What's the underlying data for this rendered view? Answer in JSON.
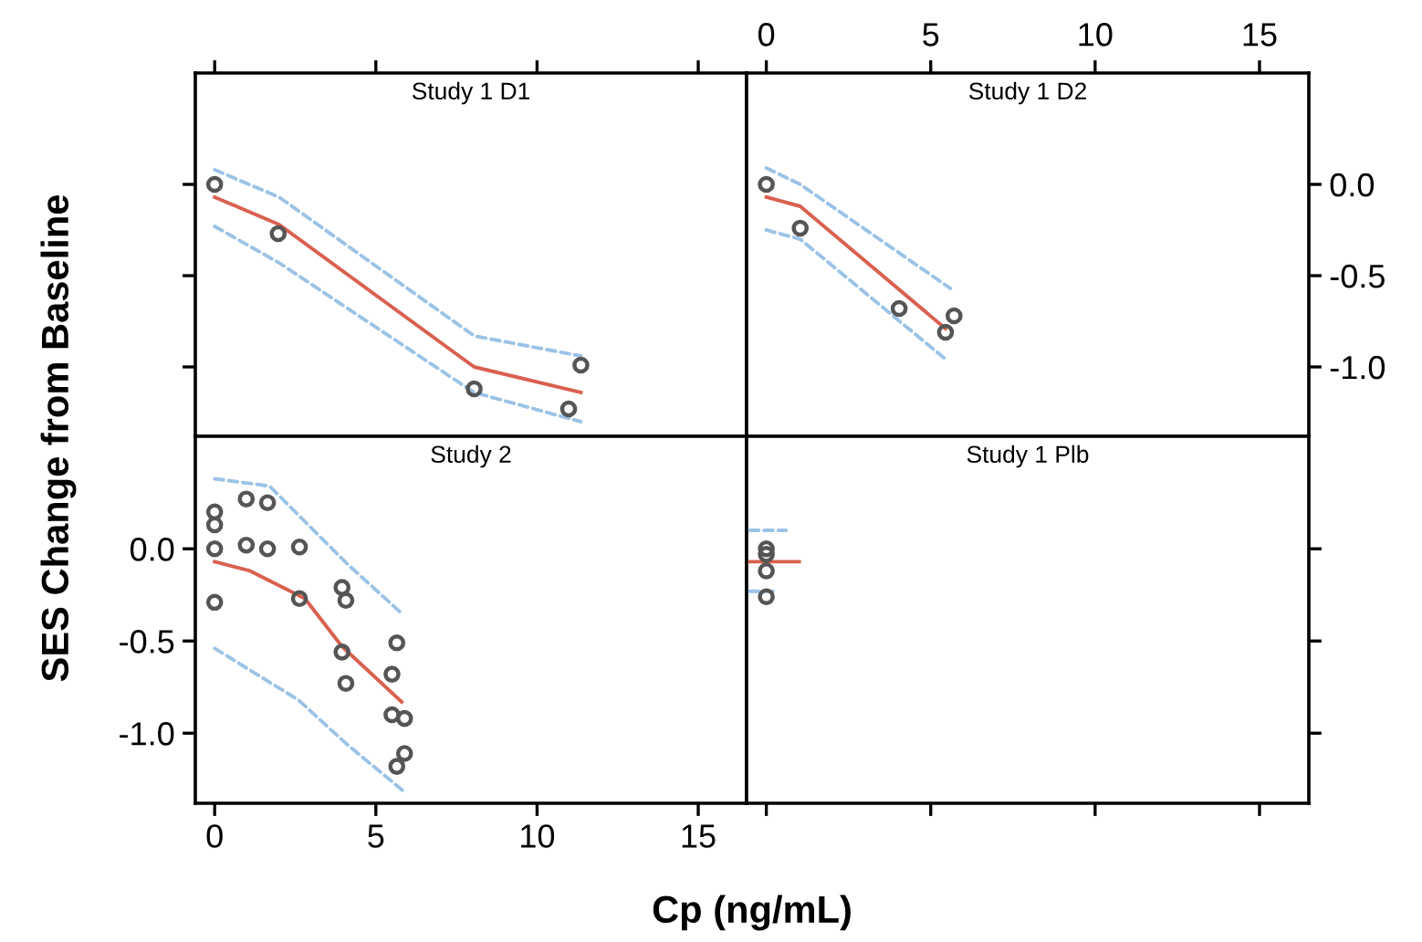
{
  "chart_data": [
    {
      "type": "line",
      "title": "Study 1 D1",
      "xlim": [
        -0.6,
        16.5
      ],
      "ylim": [
        -1.38,
        0.61
      ],
      "xticks": [
        0,
        5,
        10,
        15
      ],
      "yticks": [
        0,
        -0.5,
        -1.0
      ],
      "tick_labels": false,
      "series": [
        {
          "color": "#9cc3e6",
          "line_style": "dashed",
          "x": [
            0,
            2,
            8.05,
            11.36
          ],
          "values": [
            0.08,
            -0.07,
            -0.83,
            -0.94
          ]
        },
        {
          "color": "#9cc3e6",
          "line_style": "dashed",
          "x": [
            0,
            2,
            8.05,
            11.36
          ],
          "values": [
            -0.23,
            -0.43,
            -1.14,
            -1.3
          ]
        },
        {
          "color": "#d9604f",
          "line_style": "solid",
          "x": [
            0,
            2,
            8.05,
            11.36
          ],
          "values": [
            -0.07,
            -0.22,
            -1.0,
            -1.14
          ]
        },
        {
          "type": "scatter",
          "color": "#555555",
          "marker": "circle",
          "x": [
            0,
            1.97,
            8.05,
            11.36,
            10.98
          ],
          "values": [
            0.0,
            -0.27,
            -1.12,
            -0.99,
            -1.23
          ]
        }
      ]
    },
    {
      "type": "line",
      "title": "Study 1 D2",
      "xlim": [
        -0.6,
        16.5
      ],
      "ylim": [
        -1.38,
        0.61
      ],
      "xticks": [
        0,
        5,
        10,
        15
      ],
      "yticks": [
        {
          "value": 0,
          "label": "0.0"
        },
        {
          "value": -0.5,
          "label": "-0.5"
        },
        {
          "value": -1.0,
          "label": "-1.0"
        }
      ],
      "series": [
        {
          "color": "#9cc3e6",
          "line_style": "dashed",
          "x": [
            0,
            1.03,
            5.6
          ],
          "values": [
            0.09,
            0.0,
            -0.57
          ]
        },
        {
          "color": "#9cc3e6",
          "line_style": "dashed",
          "x": [
            0,
            1.03,
            5.4
          ],
          "values": [
            -0.25,
            -0.3,
            -0.95
          ]
        },
        {
          "color": "#d9604f",
          "line_style": "solid",
          "x": [
            0,
            1.03,
            5.45
          ],
          "values": [
            -0.07,
            -0.12,
            -0.79
          ]
        },
        {
          "type": "scatter",
          "color": "#555555",
          "marker": "circle",
          "x": [
            0,
            1.03,
            4.04,
            5.45,
            5.71
          ],
          "values": [
            0.0,
            -0.24,
            -0.68,
            -0.81,
            -0.72
          ]
        }
      ]
    },
    {
      "type": "line",
      "title": "Study 2",
      "xlabel": "Cp (ng/mL)",
      "ylabel": "SES Change from Baseline",
      "xlim": [
        -0.6,
        16.5
      ],
      "ylim": [
        -1.38,
        0.61
      ],
      "xticks": [
        0,
        5,
        10,
        15
      ],
      "yticks": [
        {
          "value": 0,
          "label": "0.0"
        },
        {
          "value": -0.5,
          "label": "-0.5"
        },
        {
          "value": -1.0,
          "label": "-1.0"
        }
      ],
      "series": [
        {
          "color": "#9cc3e6",
          "line_style": "dashed",
          "x": [
            0,
            1.7,
            4.1,
            5.8
          ],
          "values": [
            0.38,
            0.34,
            -0.08,
            -0.35
          ]
        },
        {
          "color": "#9cc3e6",
          "line_style": "dashed",
          "x": [
            0,
            2.6,
            4.1,
            5.9
          ],
          "values": [
            -0.54,
            -0.82,
            -1.06,
            -1.32
          ]
        },
        {
          "color": "#d9604f",
          "line_style": "solid",
          "x": [
            0,
            1.1,
            2.8,
            3.95,
            5.8
          ],
          "values": [
            -0.07,
            -0.12,
            -0.27,
            -0.53,
            -0.83
          ]
        },
        {
          "type": "scatter",
          "color": "#555555",
          "marker": "circle",
          "x": [
            0,
            0,
            0,
            0,
            0.98,
            0.98,
            1.64,
            1.64,
            2.63,
            2.63,
            3.95,
            4.07,
            3.95,
            4.07,
            5.65,
            5.5,
            5.5,
            5.89,
            5.65,
            5.89
          ],
          "values": [
            0.2,
            0.13,
            0.0,
            -0.29,
            0.27,
            0.02,
            0.25,
            0.0,
            0.01,
            -0.27,
            -0.21,
            -0.28,
            -0.56,
            -0.73,
            -0.51,
            -0.68,
            -0.9,
            -0.92,
            -1.18,
            -1.11
          ]
        }
      ]
    },
    {
      "type": "line",
      "title": "Study 1 Plb",
      "xlim": [
        -0.6,
        16.5
      ],
      "ylim": [
        -1.38,
        0.61
      ],
      "xticks": [
        0,
        5,
        10,
        15
      ],
      "yticks": [
        0,
        -0.5,
        -1.0
      ],
      "tick_labels": false,
      "series": [
        {
          "color": "#9cc3e6",
          "line_style": "dashed",
          "x": [
            -0.5,
            0.6
          ],
          "values": [
            0.1,
            0.1
          ]
        },
        {
          "color": "#9cc3e6",
          "line_style": "dashed",
          "x": [
            -0.5,
            0.3
          ],
          "values": [
            -0.23,
            -0.23
          ]
        },
        {
          "color": "#d9604f",
          "line_style": "solid",
          "x": [
            -0.5,
            1.0
          ],
          "values": [
            -0.07,
            -0.07
          ]
        },
        {
          "type": "scatter",
          "color": "#555555",
          "marker": "circle",
          "x": [
            0,
            0,
            0,
            0
          ],
          "values": [
            0.0,
            -0.03,
            -0.12,
            -0.26
          ]
        }
      ]
    }
  ]
}
